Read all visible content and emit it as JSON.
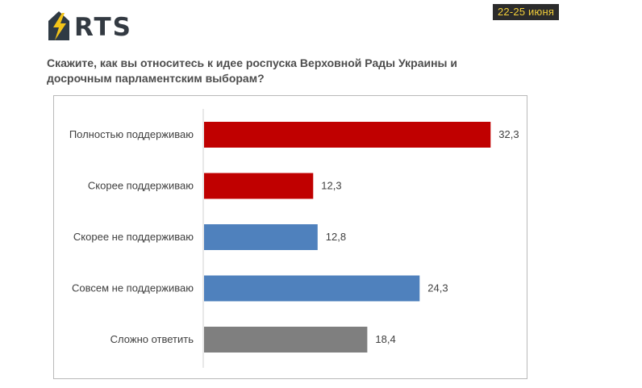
{
  "header": {
    "logo_text": "RTS",
    "logo_icon": "lightning-bolt-icon",
    "date_badge": "22-25 июня"
  },
  "question": {
    "line1": "Скажите, как вы относитесь к идее роспуска Верховной Рады Украины и",
    "line2": "досрочным парламентским выборам?"
  },
  "colors": {
    "red": "#c00000",
    "blue": "#4f81bd",
    "gray": "#7f7f7f"
  },
  "chart_data": {
    "type": "bar",
    "orientation": "horizontal",
    "categories": [
      "Полностью поддерживаю",
      "Скорее поддерживаю",
      "Скорее не поддерживаю",
      "Совсем не поддерживаю",
      "Сложно ответить"
    ],
    "values": [
      32.3,
      12.3,
      12.8,
      24.3,
      18.4
    ],
    "value_labels": [
      "32,3",
      "12,3",
      "12,8",
      "24,3",
      "18,4"
    ],
    "bar_colors": [
      "#c00000",
      "#c00000",
      "#4f81bd",
      "#4f81bd",
      "#7f7f7f"
    ],
    "title": "",
    "xlabel": "",
    "ylabel": "",
    "xlim": [
      0,
      35
    ],
    "grid": false,
    "legend": "none"
  }
}
